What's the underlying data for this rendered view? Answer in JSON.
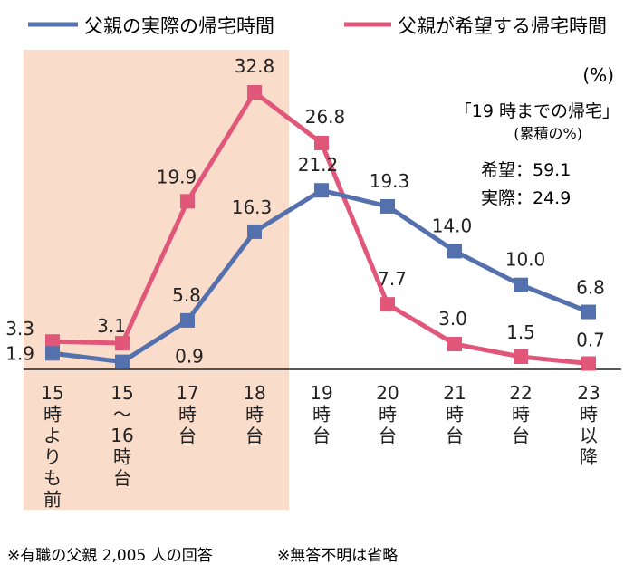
{
  "chart_data": {
    "type": "line",
    "categories": [
      [
        "15",
        "時",
        "よ",
        "り",
        "も",
        "前"
      ],
      [
        "15",
        "～",
        "16",
        "時",
        "台"
      ],
      [
        "17",
        "時",
        "台"
      ],
      [
        "18",
        "時",
        "台"
      ],
      [
        "19",
        "時",
        "台"
      ],
      [
        "20",
        "時",
        "台"
      ],
      [
        "21",
        "時",
        "台"
      ],
      [
        "22",
        "時",
        "台"
      ],
      [
        "23",
        "時",
        "以",
        "降"
      ]
    ],
    "series": [
      {
        "name": "父親の実際の帰宅時間",
        "color": "#5470ad",
        "values": [
          1.9,
          0.9,
          5.8,
          16.3,
          21.2,
          19.3,
          14.0,
          10.0,
          6.8
        ],
        "labels": [
          "1.9",
          "0.9",
          "5.8",
          "16.3",
          "21.2",
          "19.3",
          "14.0",
          "10.0",
          "6.8"
        ]
      },
      {
        "name": "父親が希望する帰宅時間",
        "color": "#e0577a",
        "values": [
          3.3,
          3.1,
          19.9,
          32.8,
          26.8,
          7.7,
          3.0,
          1.5,
          0.7
        ],
        "labels": [
          "3.3",
          "3.1",
          "19.9",
          "32.8",
          "26.8",
          "7.7",
          "3.0",
          "1.5",
          "0.7"
        ]
      }
    ],
    "ylim": [
      0,
      32.8
    ],
    "unit": "(%)",
    "highlight": {
      "from_category_index": 0,
      "to_category_index": 3,
      "color": "#fadcca"
    },
    "annotation": {
      "title": "「19 時までの帰宅」",
      "subtitle": "(累積の%)",
      "lines": [
        "希望：59.1",
        "実際：24.9"
      ]
    },
    "legend_position": "top"
  },
  "footnotes": [
    "※有職の父親 2,005 人の回答",
    "※無答不明は省略"
  ]
}
